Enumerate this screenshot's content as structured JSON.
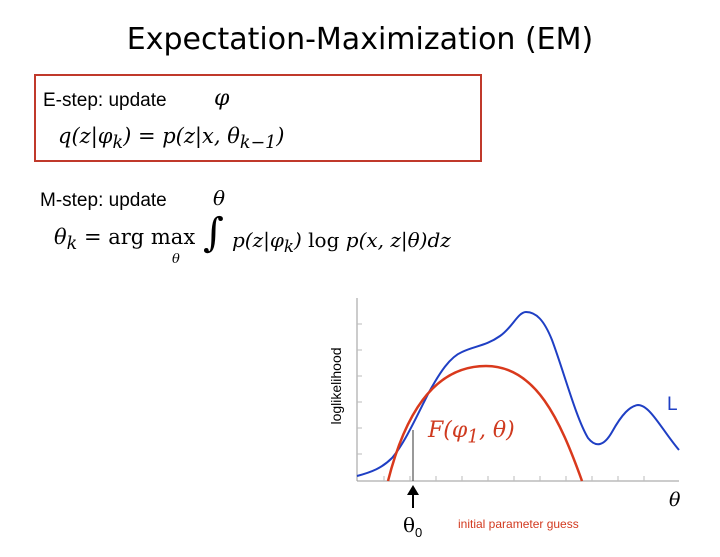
{
  "slide": {
    "title": "Expectation-Maximization (EM)"
  },
  "estep": {
    "label": "E-step:  update",
    "symbol": "φ",
    "equation": "q(z|φ_k) = p(z|x, θ_{k−1})"
  },
  "mstep": {
    "label": "M-step: update",
    "symbol": "θ",
    "equation_lhs": "θ_k = arg max",
    "equation_sub": "θ",
    "integral": "∫",
    "equation_rhs": "p(z|φ_k) log p(x, z|θ)dz"
  },
  "graph": {
    "ylabel": "loglikelihood",
    "xlabel": "θ",
    "curve_L_label": "L",
    "curve_F_label": "F(φ_1, θ)",
    "marker_base": "θ",
    "marker_sub": "0",
    "marker_caption": "initial parameter guess"
  },
  "colors": {
    "box_border": "#c0392b",
    "curve_L": "#1f3fc4",
    "curve_F": "#d9391c",
    "caption": "#d23a1f"
  }
}
